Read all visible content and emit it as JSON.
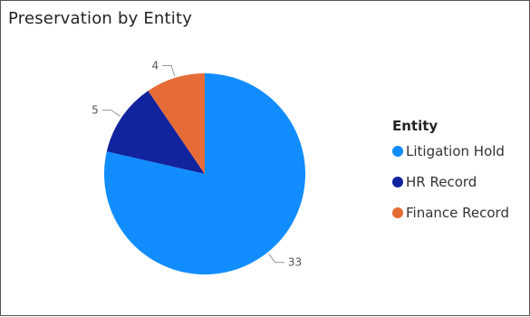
{
  "chart_data": {
    "type": "pie",
    "title": "Preservation by Entity",
    "legend_title": "Entity",
    "legend_position": "right",
    "slices": [
      {
        "label": "Litigation Hold",
        "value": 33,
        "color": "#118DFF"
      },
      {
        "label": "HR Record",
        "value": 5,
        "color": "#12239E"
      },
      {
        "label": "Finance Record",
        "value": 4,
        "color": "#E66C37"
      }
    ]
  }
}
